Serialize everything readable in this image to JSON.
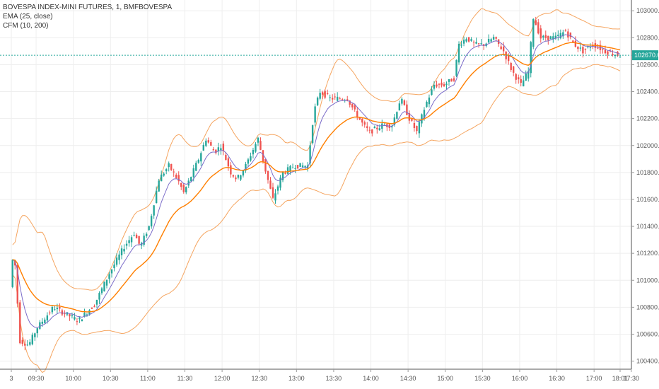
{
  "header": {
    "symbol_title": "BOVESPA INDEX-MINI FUTURES, 1, BMFBOVESPA",
    "indicator_1": "EMA (25, close)",
    "indicator_2": "CFM (10, 200)"
  },
  "colors": {
    "up": "#26a69a",
    "down": "#ef5350",
    "ema": "#ff7f00",
    "band": "#f5a560",
    "mid": "#7b6cc9",
    "last_price": "#26a69a",
    "grid": "#eeeeee",
    "axis_text": "#555555"
  },
  "chart_data": {
    "type": "candlestick",
    "x_tick_labels": [
      "3",
      "09:30",
      "10:00",
      "10:30",
      "11:00",
      "11:30",
      "12:00",
      "12:30",
      "13:00",
      "13:30",
      "14:00",
      "14:30",
      "15:00",
      "15:30",
      "16:00",
      "16:30",
      "17:00",
      "17:30",
      "18:01"
    ],
    "y_tick_labels": [
      "100400.0",
      "100600.0",
      "100800.0",
      "101000.0",
      "101200.0",
      "101400.0",
      "101600.0",
      "101800.0",
      "102000.0",
      "102200.0",
      "102400.0",
      "102600.0",
      "102800.0",
      "103000.0"
    ],
    "ylim": [
      100340,
      103080
    ],
    "last_price": 102670.0,
    "last_price_label": "102670.0",
    "grid": true,
    "price_path": [
      {
        "minute": 0,
        "price": 100950
      },
      {
        "minute": 3,
        "price": 101250
      },
      {
        "minute": 8,
        "price": 100550
      },
      {
        "minute": 15,
        "price": 100520
      },
      {
        "minute": 22,
        "price": 100650
      },
      {
        "minute": 35,
        "price": 100800
      },
      {
        "minute": 55,
        "price": 100700
      },
      {
        "minute": 68,
        "price": 100820
      },
      {
        "minute": 80,
        "price": 101050
      },
      {
        "minute": 92,
        "price": 101250
      },
      {
        "minute": 100,
        "price": 101350
      },
      {
        "minute": 105,
        "price": 101250
      },
      {
        "minute": 112,
        "price": 101400
      },
      {
        "minute": 120,
        "price": 101750
      },
      {
        "minute": 128,
        "price": 101850
      },
      {
        "minute": 135,
        "price": 101750
      },
      {
        "minute": 140,
        "price": 101650
      },
      {
        "minute": 145,
        "price": 101750
      },
      {
        "minute": 152,
        "price": 101900
      },
      {
        "minute": 158,
        "price": 102050
      },
      {
        "minute": 165,
        "price": 101950
      },
      {
        "minute": 170,
        "price": 102000
      },
      {
        "minute": 178,
        "price": 101800
      },
      {
        "minute": 183,
        "price": 101750
      },
      {
        "minute": 190,
        "price": 101850
      },
      {
        "minute": 200,
        "price": 102050
      },
      {
        "minute": 205,
        "price": 101850
      },
      {
        "minute": 212,
        "price": 101600
      },
      {
        "minute": 220,
        "price": 101800
      },
      {
        "minute": 230,
        "price": 101850
      },
      {
        "minute": 240,
        "price": 101850
      },
      {
        "minute": 245,
        "price": 102250
      },
      {
        "minute": 250,
        "price": 102400
      },
      {
        "minute": 258,
        "price": 102350
      },
      {
        "minute": 265,
        "price": 102350
      },
      {
        "minute": 272,
        "price": 102350
      },
      {
        "minute": 278,
        "price": 102250
      },
      {
        "minute": 285,
        "price": 102150
      },
      {
        "minute": 290,
        "price": 102100
      },
      {
        "minute": 300,
        "price": 102150
      },
      {
        "minute": 308,
        "price": 102150
      },
      {
        "minute": 315,
        "price": 102350
      },
      {
        "minute": 322,
        "price": 102200
      },
      {
        "minute": 328,
        "price": 102100
      },
      {
        "minute": 335,
        "price": 102300
      },
      {
        "minute": 342,
        "price": 102450
      },
      {
        "minute": 350,
        "price": 102450
      },
      {
        "minute": 358,
        "price": 102500
      },
      {
        "minute": 362,
        "price": 102750
      },
      {
        "minute": 368,
        "price": 102800
      },
      {
        "minute": 375,
        "price": 102750
      },
      {
        "minute": 382,
        "price": 102750
      },
      {
        "minute": 390,
        "price": 102800
      },
      {
        "minute": 398,
        "price": 102700
      },
      {
        "minute": 405,
        "price": 102550
      },
      {
        "minute": 412,
        "price": 102450
      },
      {
        "minute": 418,
        "price": 102550
      },
      {
        "minute": 422,
        "price": 102950
      },
      {
        "minute": 428,
        "price": 102800
      },
      {
        "minute": 440,
        "price": 102800
      },
      {
        "minute": 448,
        "price": 102850
      },
      {
        "minute": 455,
        "price": 102750
      },
      {
        "minute": 462,
        "price": 102700
      },
      {
        "minute": 470,
        "price": 102750
      },
      {
        "minute": 480,
        "price": 102700
      },
      {
        "minute": 491,
        "price": 102670
      }
    ]
  }
}
